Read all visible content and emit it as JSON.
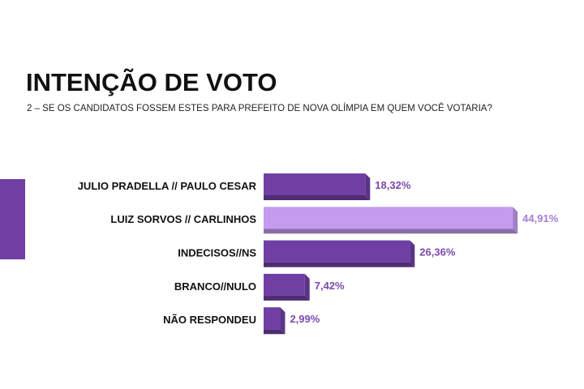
{
  "chart_data": {
    "type": "bar",
    "orientation": "horizontal",
    "title": "INTENÇÃO DE VOTO",
    "subtitle": "2 – SE OS CANDIDATOS FOSSEM ESTES PARA PREFEITO DE NOVA OLÍMPIA EM QUEM VOCÊ VOTARIA?",
    "categories": [
      "JULIO PRADELLA // PAULO CESAR",
      "LUIZ SORVOS // CARLINHOS",
      "INDECISOS//NS",
      "BRANCO//NULO",
      "NÃO RESPONDEU"
    ],
    "values": [
      18.32,
      44.91,
      26.36,
      7.42,
      2.99
    ],
    "value_labels": [
      "18,32%",
      "44,91%",
      "26,36%",
      "7,42%",
      "2,99%"
    ],
    "colors": [
      "#6f3fa3",
      "#c39bef",
      "#6f3fa3",
      "#6f3fa3",
      "#6f3fa3"
    ]
  }
}
